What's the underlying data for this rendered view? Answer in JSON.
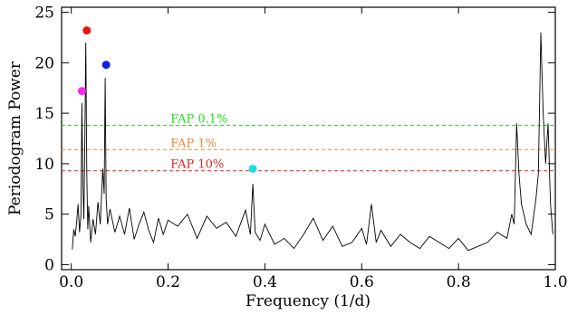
{
  "chart_data": {
    "type": "line",
    "xlabel": "Frequency (1/d)",
    "ylabel": "Periodogram Power",
    "xlim": [
      -0.02,
      1.0
    ],
    "ylim": [
      -0.5,
      25.5
    ],
    "x_ticks": [
      0.0,
      0.2,
      0.4,
      0.6,
      0.8,
      1.0
    ],
    "x_tick_labels": [
      "0.0",
      "0.2",
      "0.4",
      "0.6",
      "0.8",
      "1.0"
    ],
    "y_ticks": [
      0,
      5,
      10,
      15,
      20,
      25
    ],
    "y_tick_labels": [
      "0",
      "5",
      "10",
      "15",
      "20",
      "25"
    ],
    "grid": false,
    "series": [
      {
        "color": "#000000",
        "x": [
          0.002,
          0.005,
          0.008,
          0.011,
          0.014,
          0.017,
          0.02,
          0.022,
          0.024,
          0.026,
          0.028,
          0.03,
          0.032,
          0.034,
          0.036,
          0.04,
          0.045,
          0.05,
          0.055,
          0.06,
          0.065,
          0.068,
          0.07,
          0.072,
          0.075,
          0.08,
          0.09,
          0.1,
          0.11,
          0.12,
          0.13,
          0.14,
          0.15,
          0.16,
          0.17,
          0.18,
          0.19,
          0.2,
          0.22,
          0.24,
          0.26,
          0.28,
          0.3,
          0.32,
          0.34,
          0.36,
          0.37,
          0.375,
          0.38,
          0.39,
          0.4,
          0.42,
          0.44,
          0.46,
          0.48,
          0.5,
          0.52,
          0.54,
          0.56,
          0.58,
          0.6,
          0.61,
          0.62,
          0.63,
          0.64,
          0.66,
          0.68,
          0.7,
          0.72,
          0.74,
          0.76,
          0.78,
          0.8,
          0.82,
          0.84,
          0.86,
          0.88,
          0.9,
          0.91,
          0.915,
          0.92,
          0.925,
          0.93,
          0.94,
          0.95,
          0.96,
          0.965,
          0.97,
          0.975,
          0.98,
          0.985,
          0.99,
          0.995
        ],
        "values": [
          1.5,
          3.5,
          2.8,
          4.2,
          6.0,
          3.2,
          5.0,
          16.0,
          8.0,
          4.5,
          12.0,
          22.0,
          9.0,
          3.5,
          5.8,
          2.2,
          4.5,
          3.0,
          6.2,
          4.0,
          9.5,
          7.0,
          18.5,
          6.5,
          4.0,
          5.5,
          3.2,
          4.8,
          3.0,
          5.6,
          2.5,
          4.0,
          5.2,
          3.4,
          2.2,
          4.6,
          3.0,
          4.4,
          3.8,
          5.0,
          2.6,
          4.8,
          3.6,
          4.2,
          2.8,
          5.4,
          3.0,
          8.0,
          3.2,
          2.4,
          4.0,
          2.0,
          2.6,
          1.6,
          3.0,
          4.6,
          2.4,
          3.8,
          1.8,
          2.2,
          3.6,
          2.0,
          6.0,
          2.2,
          3.4,
          1.8,
          3.0,
          2.2,
          1.6,
          2.8,
          2.2,
          1.6,
          2.6,
          1.4,
          1.8,
          2.2,
          3.2,
          2.6,
          5.0,
          4.0,
          14.0,
          9.0,
          6.0,
          4.0,
          3.0,
          6.5,
          9.0,
          23.0,
          15.0,
          10.0,
          14.0,
          6.0,
          3.0
        ]
      }
    ],
    "thresholds": [
      {
        "label": "FAP 0.1%",
        "y": 13.8,
        "color": "#22dd22"
      },
      {
        "label": "FAP 1%",
        "y": 11.4,
        "color": "#ee8833"
      },
      {
        "label": "FAP 10%",
        "y": 9.3,
        "color": "#dd2222"
      }
    ],
    "markers": [
      {
        "x": 0.022,
        "y": 17.2,
        "color": "#ff22ff"
      },
      {
        "x": 0.032,
        "y": 23.2,
        "color": "#ee1111"
      },
      {
        "x": 0.072,
        "y": 19.8,
        "color": "#1122dd"
      },
      {
        "x": 0.375,
        "y": 9.5,
        "color": "#22dddd"
      }
    ]
  }
}
